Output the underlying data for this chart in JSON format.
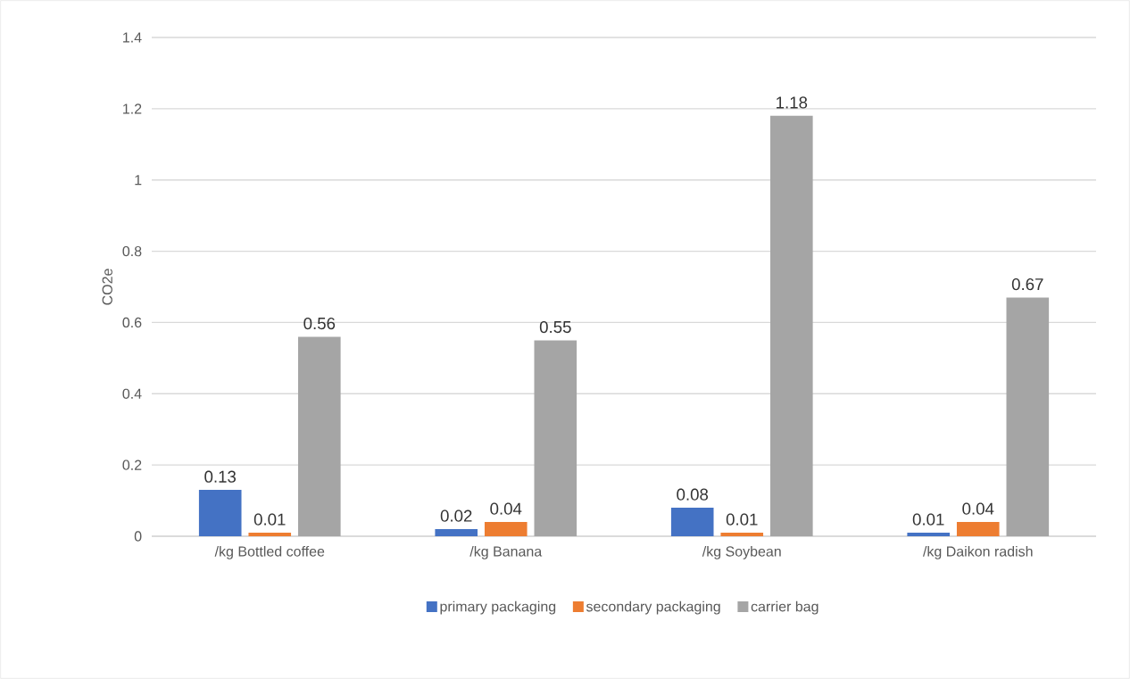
{
  "chart_data": {
    "type": "bar",
    "ylabel": "CO2e",
    "categories": [
      "/kg Bottled coffee",
      "/kg Banana",
      "/kg Soybean",
      "/kg Daikon radish"
    ],
    "series": [
      {
        "name": "primary packaging",
        "color": "#4472c4",
        "values": [
          0.13,
          0.02,
          0.08,
          0.01
        ]
      },
      {
        "name": "secondary packaging",
        "color": "#ed7d31",
        "values": [
          0.01,
          0.04,
          0.01,
          0.04
        ]
      },
      {
        "name": "carrier bag",
        "color": "#a5a5a5",
        "values": [
          0.56,
          0.55,
          1.18,
          0.67
        ]
      }
    ],
    "ylim": [
      0,
      1.4
    ],
    "yticks": [
      0,
      0.2,
      0.4,
      0.6,
      0.8,
      1,
      1.2,
      1.4
    ],
    "grid": "y",
    "legend": "bottom",
    "data_labels": true
  }
}
